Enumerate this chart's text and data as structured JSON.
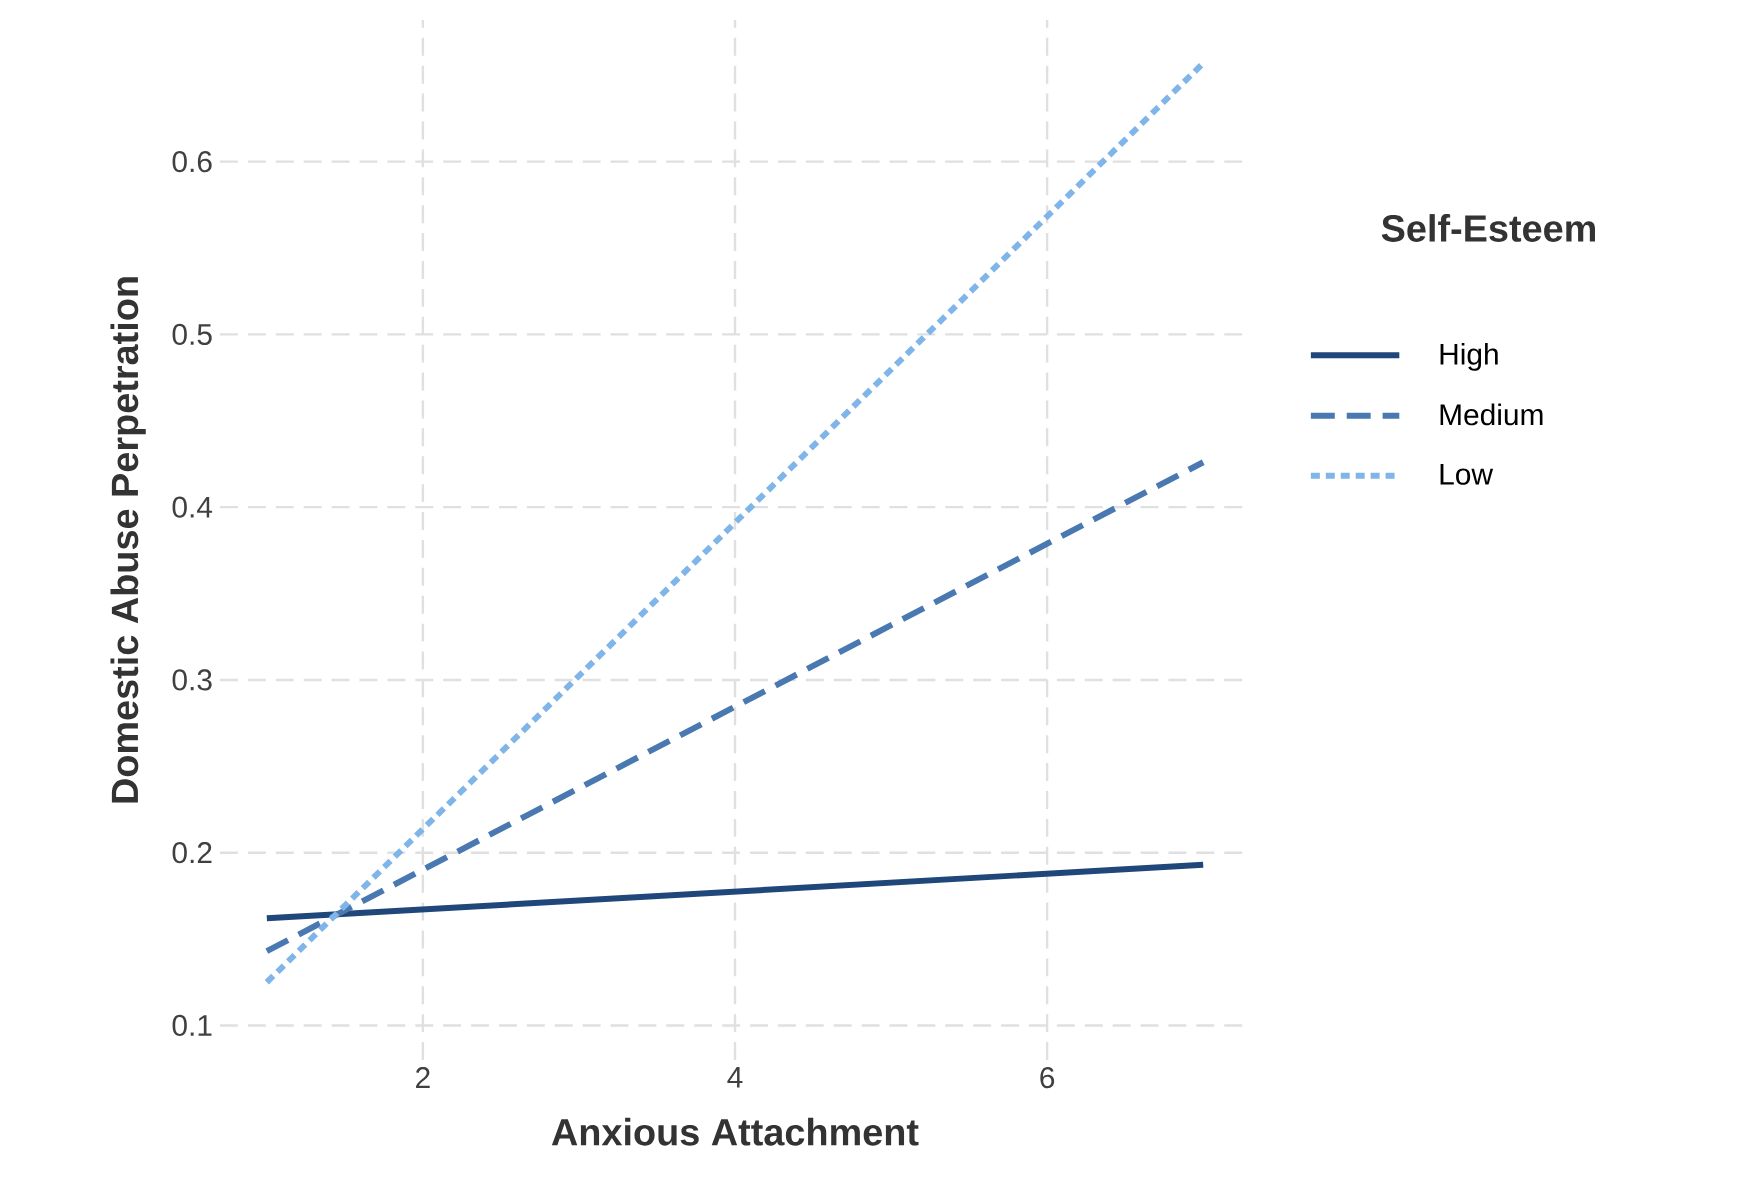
{
  "chart_data": {
    "type": "line",
    "xlabel": "Anxious Attachment",
    "ylabel": "Domestic Abuse Perpetration",
    "legend_title": "Self-Esteem",
    "legend": "right",
    "grid": true,
    "xlim": [
      0.7,
      7.3
    ],
    "ylim": [
      0.08,
      0.682
    ],
    "xticks": [
      2,
      4,
      6
    ],
    "yticks": [
      0.1,
      0.2,
      0.3,
      0.4,
      0.5,
      0.6
    ],
    "x": [
      1,
      7
    ],
    "series": [
      {
        "name": "High",
        "color": "#1f477a",
        "line_style": "solid",
        "values": [
          0.162,
          0.193
        ]
      },
      {
        "name": "Medium",
        "color": "#4a78b0",
        "line_style": "dashed",
        "values": [
          0.143,
          0.426
        ]
      },
      {
        "name": "Low",
        "color": "#7fb5e8",
        "line_style": "dotted",
        "values": [
          0.125,
          0.657
        ]
      }
    ]
  }
}
